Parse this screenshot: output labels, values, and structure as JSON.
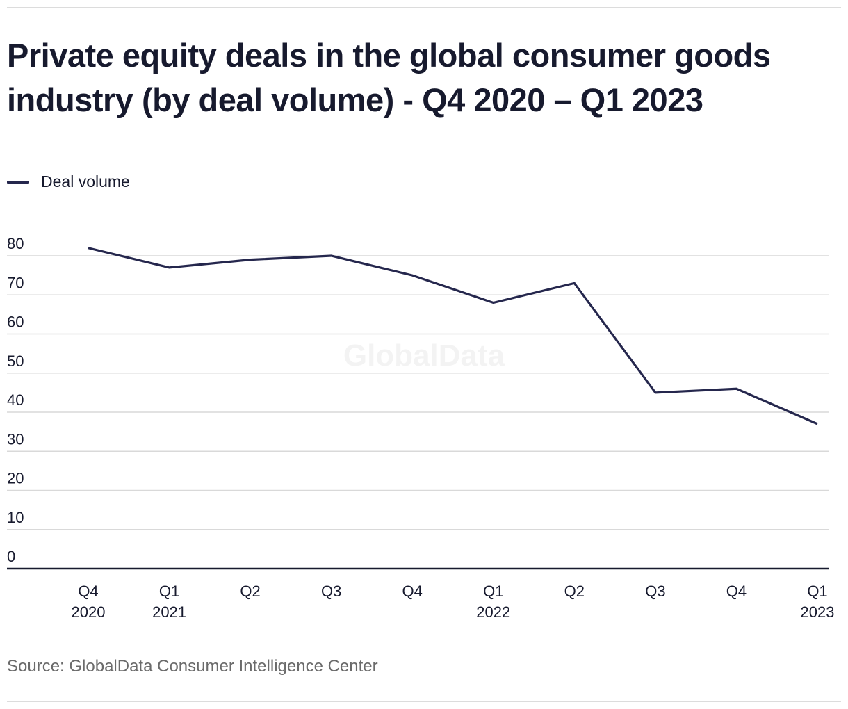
{
  "header": {
    "title": "Private equity deals in the global consumer goods industry (by deal volume) - Q4 2020 – Q1 2023"
  },
  "legend": {
    "items": [
      {
        "label": "Deal volume",
        "color": "#25274d"
      }
    ]
  },
  "watermark": "GlobalData",
  "footer": {
    "source": "Source: GlobalData Consumer Intelligence Center"
  },
  "chart_data": {
    "type": "line",
    "title": "Private equity deals in the global consumer goods industry (by deal volume) - Q4 2020 – Q1 2023",
    "xlabel": "",
    "ylabel": "",
    "categories": [
      [
        "Q4",
        "2020"
      ],
      [
        "Q1",
        "2021"
      ],
      [
        "Q2",
        ""
      ],
      [
        "Q3",
        ""
      ],
      [
        "Q4",
        ""
      ],
      [
        "Q1",
        "2022"
      ],
      [
        "Q2",
        ""
      ],
      [
        "Q3",
        ""
      ],
      [
        "Q4",
        ""
      ],
      [
        "Q1",
        "2023"
      ]
    ],
    "series": [
      {
        "name": "Deal volume",
        "color": "#25274d",
        "values": [
          82,
          77,
          79,
          80,
          75,
          68,
          73,
          45,
          46,
          37
        ]
      }
    ],
    "ylim": [
      0,
      80
    ],
    "yticks": [
      0,
      10,
      20,
      30,
      40,
      50,
      60,
      70,
      80
    ],
    "grid": true,
    "legend_position": "top-left"
  }
}
